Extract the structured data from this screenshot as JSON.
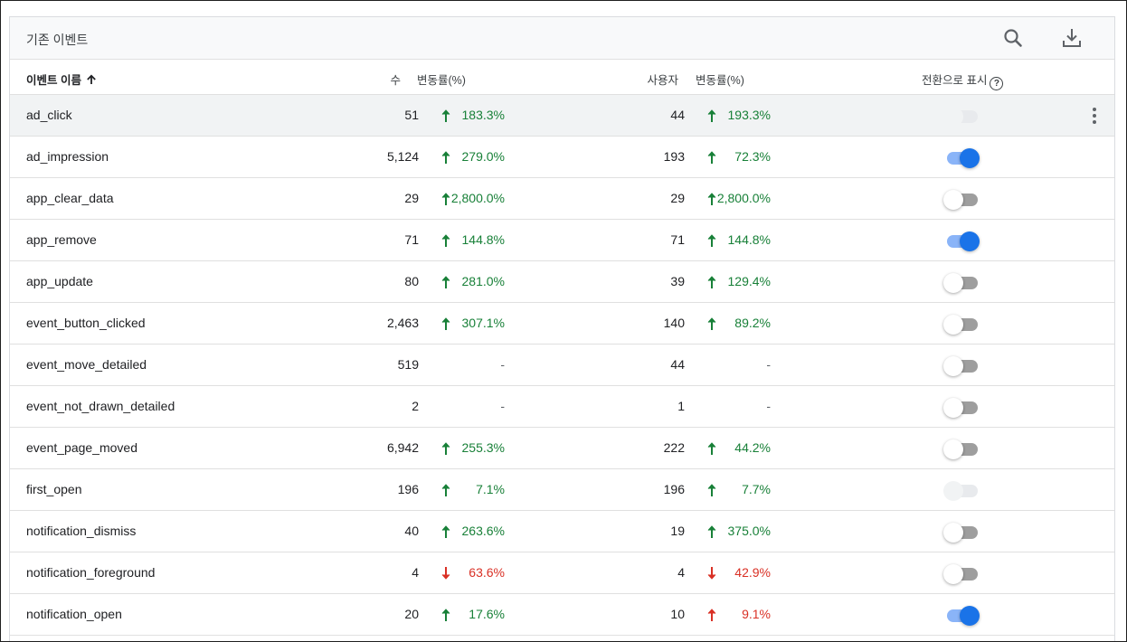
{
  "card": {
    "title": "기존 이벤트",
    "search_icon": "search-icon",
    "download_icon": "download-icon"
  },
  "header": {
    "name": "이벤트 이름",
    "count": "수",
    "count_change": "변동률(%)",
    "users": "사용자",
    "users_change": "변동률(%)",
    "conversion": "전환으로 표시",
    "help": "?"
  },
  "colors": {
    "up": "#188038",
    "down": "#d93025",
    "toggle_on": "#1a73e8"
  },
  "rows": [
    {
      "name": "ad_click",
      "count": "51",
      "count_dir": "up",
      "count_change": "183.3%",
      "users": "44",
      "users_dir": "up",
      "users_change": "193.3%",
      "conversion": "disabled",
      "highlight": true,
      "menu": true
    },
    {
      "name": "ad_impression",
      "count": "5,124",
      "count_dir": "up",
      "count_change": "279.0%",
      "users": "193",
      "users_dir": "up",
      "users_change": "72.3%",
      "conversion": "on"
    },
    {
      "name": "app_clear_data",
      "count": "29",
      "count_dir": "up",
      "count_change": "2,800.0%",
      "users": "29",
      "users_dir": "up",
      "users_change": "2,800.0%",
      "conversion": "off"
    },
    {
      "name": "app_remove",
      "count": "71",
      "count_dir": "up",
      "count_change": "144.8%",
      "users": "71",
      "users_dir": "up",
      "users_change": "144.8%",
      "conversion": "on"
    },
    {
      "name": "app_update",
      "count": "80",
      "count_dir": "up",
      "count_change": "281.0%",
      "users": "39",
      "users_dir": "up",
      "users_change": "129.4%",
      "conversion": "off"
    },
    {
      "name": "event_button_clicked",
      "count": "2,463",
      "count_dir": "up",
      "count_change": "307.1%",
      "users": "140",
      "users_dir": "up",
      "users_change": "89.2%",
      "conversion": "off"
    },
    {
      "name": "event_move_detailed",
      "count": "519",
      "count_dir": "none",
      "count_change": "-",
      "users": "44",
      "users_dir": "none",
      "users_change": "-",
      "conversion": "off"
    },
    {
      "name": "event_not_drawn_detailed",
      "count": "2",
      "count_dir": "none",
      "count_change": "-",
      "users": "1",
      "users_dir": "none",
      "users_change": "-",
      "conversion": "off"
    },
    {
      "name": "event_page_moved",
      "count": "6,942",
      "count_dir": "up",
      "count_change": "255.3%",
      "users": "222",
      "users_dir": "up",
      "users_change": "44.2%",
      "conversion": "off"
    },
    {
      "name": "first_open",
      "count": "196",
      "count_dir": "up",
      "count_change": "7.1%",
      "users": "196",
      "users_dir": "up",
      "users_change": "7.7%",
      "conversion": "disabled"
    },
    {
      "name": "notification_dismiss",
      "count": "40",
      "count_dir": "up",
      "count_change": "263.6%",
      "users": "19",
      "users_dir": "up",
      "users_change": "375.0%",
      "conversion": "off"
    },
    {
      "name": "notification_foreground",
      "count": "4",
      "count_dir": "down",
      "count_change": "63.6%",
      "users": "4",
      "users_dir": "down",
      "users_change": "42.9%",
      "conversion": "off"
    },
    {
      "name": "notification_open",
      "count": "20",
      "count_dir": "up",
      "count_change": "17.6%",
      "users": "10",
      "users_dir": "up-red",
      "users_change": "9.1%",
      "conversion": "on"
    }
  ]
}
